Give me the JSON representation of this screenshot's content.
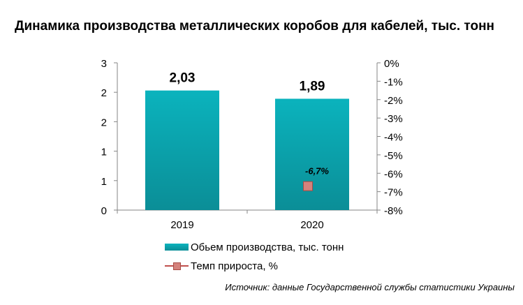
{
  "title": "Динамика производства металлических коробов для кабелей, тыс. тонн",
  "legend": {
    "series1": "Обьем производства, тыс. тонн",
    "series2": "Темп прироста, %"
  },
  "source": "Источник: данные Государственной службы статистики Украины",
  "colors": {
    "bar_top": "#0bb3bd",
    "bar_bottom": "#0b8e97",
    "marker_fill": "#d4827c",
    "marker_stroke": "#a84a44"
  },
  "chart_data": {
    "type": "bar",
    "categories": [
      "2019",
      "2020"
    ],
    "series": [
      {
        "name": "Обьем производства, тыс. тонн",
        "type": "bar",
        "axis": "left",
        "values": [
          2.03,
          1.89
        ],
        "labels": [
          "2,03",
          "1,89"
        ]
      },
      {
        "name": "Темп прироста, %",
        "type": "line",
        "axis": "right",
        "values": [
          null,
          -6.7
        ],
        "labels": [
          "",
          "-6,7%"
        ]
      }
    ],
    "y_left": {
      "ylim": [
        0,
        2.5
      ],
      "tick_values": [
        0,
        0.5,
        1,
        1.5,
        2,
        2.5
      ],
      "tick_labels": [
        "0",
        "1",
        "1",
        "2",
        "2",
        "3"
      ]
    },
    "y_right": {
      "ylim": [
        -8,
        0
      ],
      "tick_values": [
        0,
        -1,
        -2,
        -3,
        -4,
        -5,
        -6,
        -7,
        -8
      ],
      "tick_labels": [
        "0%",
        "-1%",
        "-2%",
        "-3%",
        "-4%",
        "-5%",
        "-6%",
        "-7%",
        "-8%"
      ]
    },
    "grid": false,
    "legend_position": "bottom"
  }
}
